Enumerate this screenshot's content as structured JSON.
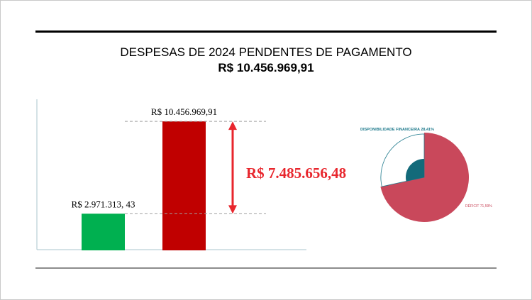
{
  "header": {
    "title": "DESPESAS DE 2024 PENDENTES DE PAGAMENTO",
    "subtitle": "R$ 10.456.969,91"
  },
  "chart_data": [
    {
      "type": "bar",
      "categories": [
        "",
        ""
      ],
      "values": [
        2971313.43,
        10456969.91
      ],
      "data_labels": [
        "R$ 2.971.313, 43",
        "R$ 10.456.969,91"
      ],
      "colors": [
        "#00b050",
        "#c00000"
      ],
      "annotation": {
        "label": "R$ 7.485.656,48",
        "value": 7485656.48,
        "color": "#e8262d"
      },
      "ylim": [
        0,
        11500000
      ],
      "grid": false
    },
    {
      "type": "pie",
      "slices": [
        {
          "label": "DISPONIBILIDADE FINANCEIRA 28,41%",
          "value": 28.41,
          "color": "#ffffff",
          "label_color": "#1f7a8c"
        },
        {
          "label": "DÉFICIT 71,59%",
          "value": 71.59,
          "color": "#c9485b",
          "label_color": "#c9485b"
        }
      ],
      "center_color": "#136a7a"
    }
  ]
}
